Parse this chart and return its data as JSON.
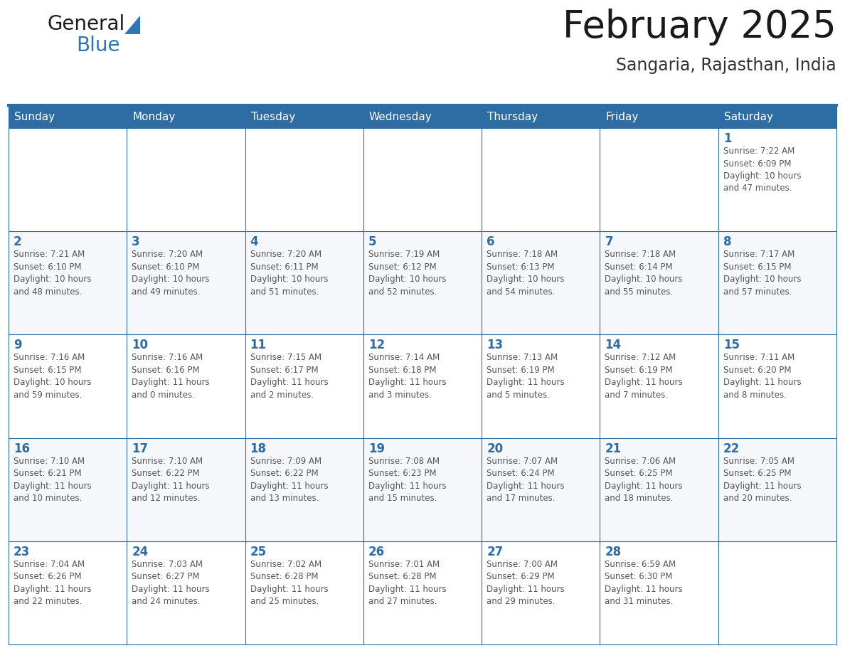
{
  "title": "February 2025",
  "subtitle": "Sangaria, Rajasthan, India",
  "header_bg": "#2E6DA4",
  "header_text_color": "#FFFFFF",
  "border_color": "#2E6DA4",
  "day_headers": [
    "Sunday",
    "Monday",
    "Tuesday",
    "Wednesday",
    "Thursday",
    "Friday",
    "Saturday"
  ],
  "title_color": "#1a1a1a",
  "subtitle_color": "#333333",
  "day_num_color": "#2E6DA4",
  "cell_text_color": "#555555",
  "logo_general_color": "#1a1a1a",
  "logo_blue_color": "#2E75B6",
  "weeks": [
    [
      {
        "day": null,
        "info": ""
      },
      {
        "day": null,
        "info": ""
      },
      {
        "day": null,
        "info": ""
      },
      {
        "day": null,
        "info": ""
      },
      {
        "day": null,
        "info": ""
      },
      {
        "day": null,
        "info": ""
      },
      {
        "day": 1,
        "info": "Sunrise: 7:22 AM\nSunset: 6:09 PM\nDaylight: 10 hours\nand 47 minutes."
      }
    ],
    [
      {
        "day": 2,
        "info": "Sunrise: 7:21 AM\nSunset: 6:10 PM\nDaylight: 10 hours\nand 48 minutes."
      },
      {
        "day": 3,
        "info": "Sunrise: 7:20 AM\nSunset: 6:10 PM\nDaylight: 10 hours\nand 49 minutes."
      },
      {
        "day": 4,
        "info": "Sunrise: 7:20 AM\nSunset: 6:11 PM\nDaylight: 10 hours\nand 51 minutes."
      },
      {
        "day": 5,
        "info": "Sunrise: 7:19 AM\nSunset: 6:12 PM\nDaylight: 10 hours\nand 52 minutes."
      },
      {
        "day": 6,
        "info": "Sunrise: 7:18 AM\nSunset: 6:13 PM\nDaylight: 10 hours\nand 54 minutes."
      },
      {
        "day": 7,
        "info": "Sunrise: 7:18 AM\nSunset: 6:14 PM\nDaylight: 10 hours\nand 55 minutes."
      },
      {
        "day": 8,
        "info": "Sunrise: 7:17 AM\nSunset: 6:15 PM\nDaylight: 10 hours\nand 57 minutes."
      }
    ],
    [
      {
        "day": 9,
        "info": "Sunrise: 7:16 AM\nSunset: 6:15 PM\nDaylight: 10 hours\nand 59 minutes."
      },
      {
        "day": 10,
        "info": "Sunrise: 7:16 AM\nSunset: 6:16 PM\nDaylight: 11 hours\nand 0 minutes."
      },
      {
        "day": 11,
        "info": "Sunrise: 7:15 AM\nSunset: 6:17 PM\nDaylight: 11 hours\nand 2 minutes."
      },
      {
        "day": 12,
        "info": "Sunrise: 7:14 AM\nSunset: 6:18 PM\nDaylight: 11 hours\nand 3 minutes."
      },
      {
        "day": 13,
        "info": "Sunrise: 7:13 AM\nSunset: 6:19 PM\nDaylight: 11 hours\nand 5 minutes."
      },
      {
        "day": 14,
        "info": "Sunrise: 7:12 AM\nSunset: 6:19 PM\nDaylight: 11 hours\nand 7 minutes."
      },
      {
        "day": 15,
        "info": "Sunrise: 7:11 AM\nSunset: 6:20 PM\nDaylight: 11 hours\nand 8 minutes."
      }
    ],
    [
      {
        "day": 16,
        "info": "Sunrise: 7:10 AM\nSunset: 6:21 PM\nDaylight: 11 hours\nand 10 minutes."
      },
      {
        "day": 17,
        "info": "Sunrise: 7:10 AM\nSunset: 6:22 PM\nDaylight: 11 hours\nand 12 minutes."
      },
      {
        "day": 18,
        "info": "Sunrise: 7:09 AM\nSunset: 6:22 PM\nDaylight: 11 hours\nand 13 minutes."
      },
      {
        "day": 19,
        "info": "Sunrise: 7:08 AM\nSunset: 6:23 PM\nDaylight: 11 hours\nand 15 minutes."
      },
      {
        "day": 20,
        "info": "Sunrise: 7:07 AM\nSunset: 6:24 PM\nDaylight: 11 hours\nand 17 minutes."
      },
      {
        "day": 21,
        "info": "Sunrise: 7:06 AM\nSunset: 6:25 PM\nDaylight: 11 hours\nand 18 minutes."
      },
      {
        "day": 22,
        "info": "Sunrise: 7:05 AM\nSunset: 6:25 PM\nDaylight: 11 hours\nand 20 minutes."
      }
    ],
    [
      {
        "day": 23,
        "info": "Sunrise: 7:04 AM\nSunset: 6:26 PM\nDaylight: 11 hours\nand 22 minutes."
      },
      {
        "day": 24,
        "info": "Sunrise: 7:03 AM\nSunset: 6:27 PM\nDaylight: 11 hours\nand 24 minutes."
      },
      {
        "day": 25,
        "info": "Sunrise: 7:02 AM\nSunset: 6:28 PM\nDaylight: 11 hours\nand 25 minutes."
      },
      {
        "day": 26,
        "info": "Sunrise: 7:01 AM\nSunset: 6:28 PM\nDaylight: 11 hours\nand 27 minutes."
      },
      {
        "day": 27,
        "info": "Sunrise: 7:00 AM\nSunset: 6:29 PM\nDaylight: 11 hours\nand 29 minutes."
      },
      {
        "day": 28,
        "info": "Sunrise: 6:59 AM\nSunset: 6:30 PM\nDaylight: 11 hours\nand 31 minutes."
      },
      {
        "day": null,
        "info": ""
      }
    ]
  ],
  "fig_width": 11.88,
  "fig_height": 9.18,
  "dpi": 100
}
